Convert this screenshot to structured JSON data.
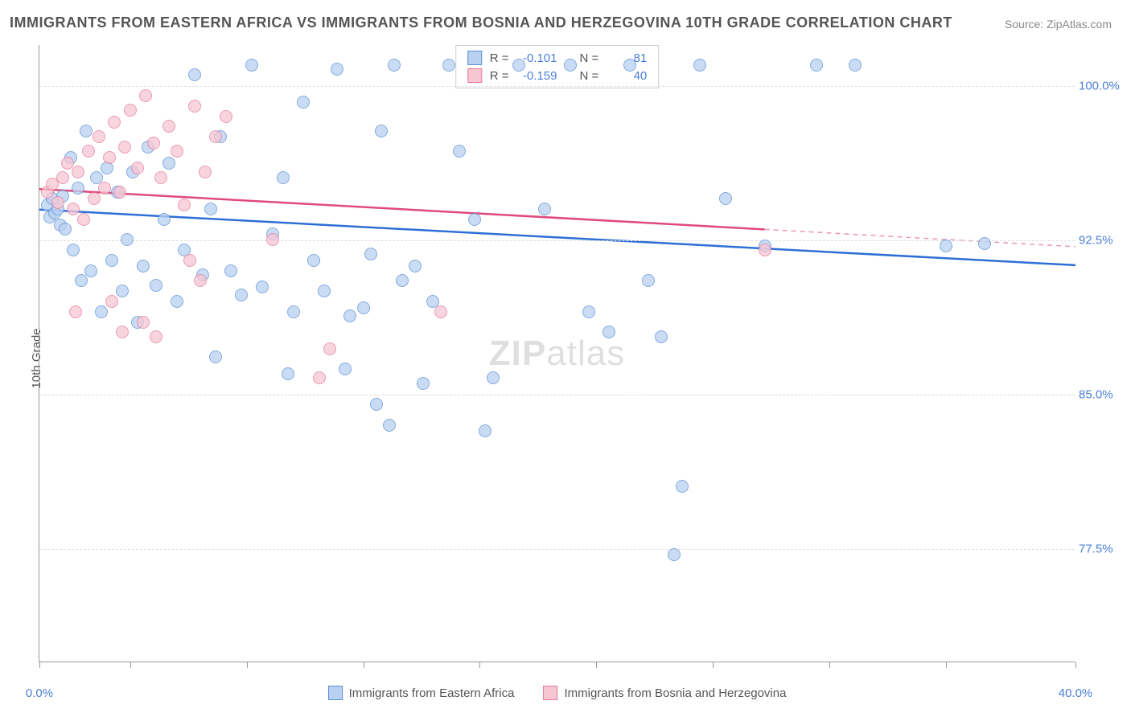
{
  "title": "IMMIGRANTS FROM EASTERN AFRICA VS IMMIGRANTS FROM BOSNIA AND HERZEGOVINA 10TH GRADE CORRELATION CHART",
  "source": "Source: ZipAtlas.com",
  "ylabel": "10th Grade",
  "watermark_zip": "ZIP",
  "watermark_atlas": "atlas",
  "chart": {
    "type": "scatter-with-regression",
    "xlim": [
      0,
      40
    ],
    "ylim": [
      72,
      102
    ],
    "xtick_positions": [
      0,
      3.5,
      8,
      12.5,
      17,
      21.5,
      26,
      30.5,
      35,
      40
    ],
    "xtick_labels": {
      "0": "0.0%",
      "40": "40.0%"
    },
    "ytick_positions": [
      77.5,
      85.0,
      92.5,
      100.0
    ],
    "ytick_labels": [
      "77.5%",
      "85.0%",
      "92.5%",
      "100.0%"
    ],
    "background_color": "#ffffff",
    "grid_color": "#dddddd",
    "axis_color": "#999999",
    "tick_label_color": "#4a7fd8",
    "series": [
      {
        "name": "Immigrants from Eastern Africa",
        "marker_fill": "#b9d1f0",
        "marker_stroke": "#5a8fd6",
        "marker_opacity": 0.75,
        "line_color": "#2e6fd6",
        "line_dash_color": "#2e6fd6",
        "R": "-0.101",
        "N": "81",
        "regression": {
          "x1": 0,
          "y1": 94.0,
          "x2": 40,
          "y2": 91.3,
          "solid_until_x": 40
        },
        "points": [
          [
            0.3,
            94.2
          ],
          [
            0.4,
            93.6
          ],
          [
            0.5,
            94.5
          ],
          [
            0.6,
            93.8
          ],
          [
            0.7,
            94.0
          ],
          [
            0.8,
            93.2
          ],
          [
            0.9,
            94.6
          ],
          [
            1.0,
            93.0
          ],
          [
            1.2,
            96.5
          ],
          [
            1.3,
            92.0
          ],
          [
            1.5,
            95.0
          ],
          [
            1.6,
            90.5
          ],
          [
            1.8,
            97.8
          ],
          [
            2.0,
            91.0
          ],
          [
            2.2,
            95.5
          ],
          [
            2.4,
            89.0
          ],
          [
            2.6,
            96.0
          ],
          [
            2.8,
            91.5
          ],
          [
            3.0,
            94.8
          ],
          [
            3.2,
            90.0
          ],
          [
            3.4,
            92.5
          ],
          [
            3.6,
            95.8
          ],
          [
            3.8,
            88.5
          ],
          [
            4.0,
            91.2
          ],
          [
            4.2,
            97.0
          ],
          [
            4.5,
            90.3
          ],
          [
            4.8,
            93.5
          ],
          [
            5.0,
            96.2
          ],
          [
            5.3,
            89.5
          ],
          [
            5.6,
            92.0
          ],
          [
            6.0,
            100.5
          ],
          [
            6.3,
            90.8
          ],
          [
            6.6,
            94.0
          ],
          [
            7.0,
            97.5
          ],
          [
            7.4,
            91.0
          ],
          [
            7.8,
            89.8
          ],
          [
            8.2,
            101.0
          ],
          [
            8.6,
            90.2
          ],
          [
            9.0,
            92.8
          ],
          [
            9.4,
            95.5
          ],
          [
            9.8,
            89.0
          ],
          [
            10.2,
            99.2
          ],
          [
            10.6,
            91.5
          ],
          [
            11.0,
            90.0
          ],
          [
            11.5,
            100.8
          ],
          [
            12.0,
            88.8
          ],
          [
            12.5,
            89.2
          ],
          [
            12.8,
            91.8
          ],
          [
            13.2,
            97.8
          ],
          [
            13.7,
            101.0
          ],
          [
            14.0,
            90.5
          ],
          [
            14.5,
            91.2
          ],
          [
            14.8,
            85.5
          ],
          [
            13.5,
            83.5
          ],
          [
            15.2,
            89.5
          ],
          [
            15.8,
            101.0
          ],
          [
            16.2,
            96.8
          ],
          [
            16.8,
            93.5
          ],
          [
            17.5,
            85.8
          ],
          [
            18.5,
            101.0
          ],
          [
            19.5,
            94.0
          ],
          [
            20.5,
            101.0
          ],
          [
            21.2,
            89.0
          ],
          [
            22.0,
            88.0
          ],
          [
            22.8,
            101.0
          ],
          [
            23.5,
            90.5
          ],
          [
            24.0,
            87.8
          ],
          [
            24.8,
            80.5
          ],
          [
            25.5,
            101.0
          ],
          [
            24.5,
            77.2
          ],
          [
            26.5,
            94.5
          ],
          [
            28.0,
            92.2
          ],
          [
            30.0,
            101.0
          ],
          [
            31.5,
            101.0
          ],
          [
            35.0,
            92.2
          ],
          [
            36.5,
            92.3
          ],
          [
            17.2,
            83.2
          ],
          [
            13.0,
            84.5
          ],
          [
            6.8,
            86.8
          ],
          [
            9.6,
            86.0
          ],
          [
            11.8,
            86.2
          ]
        ]
      },
      {
        "name": "Immigrants from Bosnia and Herzegovina",
        "marker_fill": "#f6c6d3",
        "marker_stroke": "#e57a9a",
        "marker_opacity": 0.75,
        "line_color": "#e04a7a",
        "line_dash_color": "#e89ab5",
        "R": "-0.159",
        "N": "40",
        "regression": {
          "x1": 0,
          "y1": 95.0,
          "x2": 40,
          "y2": 92.2,
          "solid_until_x": 28
        },
        "points": [
          [
            0.3,
            94.8
          ],
          [
            0.5,
            95.2
          ],
          [
            0.7,
            94.3
          ],
          [
            0.9,
            95.5
          ],
          [
            1.1,
            96.2
          ],
          [
            1.3,
            94.0
          ],
          [
            1.5,
            95.8
          ],
          [
            1.7,
            93.5
          ],
          [
            1.9,
            96.8
          ],
          [
            2.1,
            94.5
          ],
          [
            2.3,
            97.5
          ],
          [
            2.5,
            95.0
          ],
          [
            2.7,
            96.5
          ],
          [
            2.9,
            98.2
          ],
          [
            3.1,
            94.8
          ],
          [
            3.3,
            97.0
          ],
          [
            3.5,
            98.8
          ],
          [
            3.8,
            96.0
          ],
          [
            4.1,
            99.5
          ],
          [
            4.4,
            97.2
          ],
          [
            4.7,
            95.5
          ],
          [
            5.0,
            98.0
          ],
          [
            5.3,
            96.8
          ],
          [
            5.6,
            94.2
          ],
          [
            6.0,
            99.0
          ],
          [
            6.4,
            95.8
          ],
          [
            6.8,
            97.5
          ],
          [
            7.2,
            98.5
          ],
          [
            4.0,
            88.5
          ],
          [
            4.5,
            87.8
          ],
          [
            3.2,
            88.0
          ],
          [
            2.8,
            89.5
          ],
          [
            1.4,
            89.0
          ],
          [
            10.8,
            85.8
          ],
          [
            6.2,
            90.5
          ],
          [
            5.8,
            91.5
          ],
          [
            15.5,
            89.0
          ],
          [
            11.2,
            87.2
          ],
          [
            28.0,
            92.0
          ],
          [
            9.0,
            92.5
          ]
        ]
      }
    ]
  },
  "legend_top": {
    "r_label": "R =",
    "n_label": "N ="
  },
  "legend_bottom": {
    "series1_label": "Immigrants from Eastern Africa",
    "series2_label": "Immigrants from Bosnia and Herzegovina"
  }
}
